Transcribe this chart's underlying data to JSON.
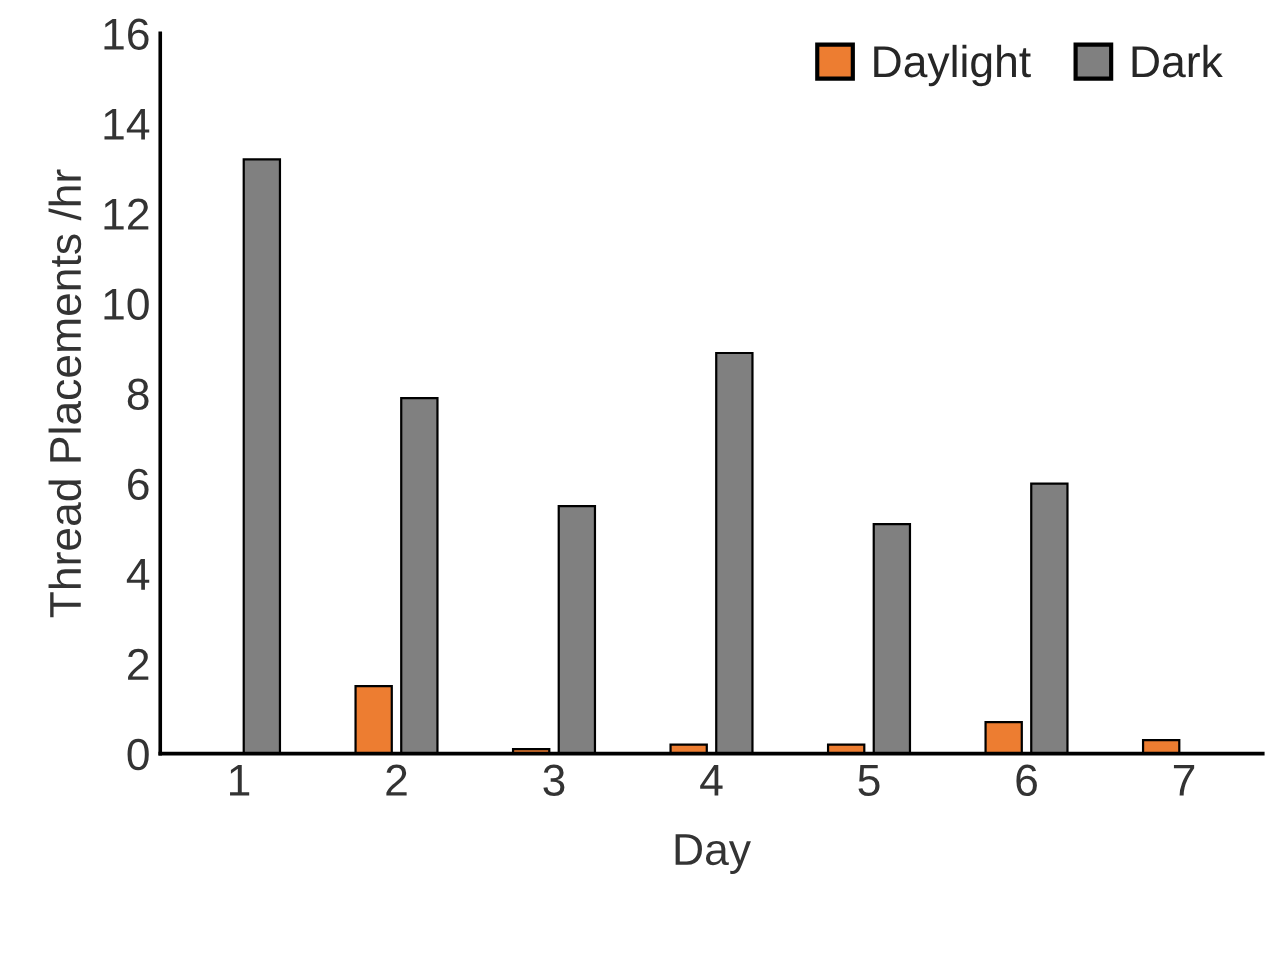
{
  "chart_data": {
    "type": "bar",
    "xlabel": "Day",
    "ylabel": "Thread Placements /hr",
    "categories": [
      "1",
      "2",
      "3",
      "4",
      "5",
      "6",
      "7"
    ],
    "series": [
      {
        "name": "Daylight",
        "color": "#ed7d31",
        "values": [
          0,
          1.5,
          0.1,
          0.2,
          0.2,
          0.7,
          0.3
        ]
      },
      {
        "name": "Dark",
        "color": "#808080",
        "values": [
          13.2,
          7.9,
          5.5,
          8.9,
          5.1,
          6.0,
          0
        ]
      }
    ],
    "ylim": [
      0,
      16
    ],
    "yticks": [
      0,
      2,
      4,
      6,
      8,
      10,
      12,
      14,
      16
    ],
    "grid": false,
    "legend": "top right"
  }
}
